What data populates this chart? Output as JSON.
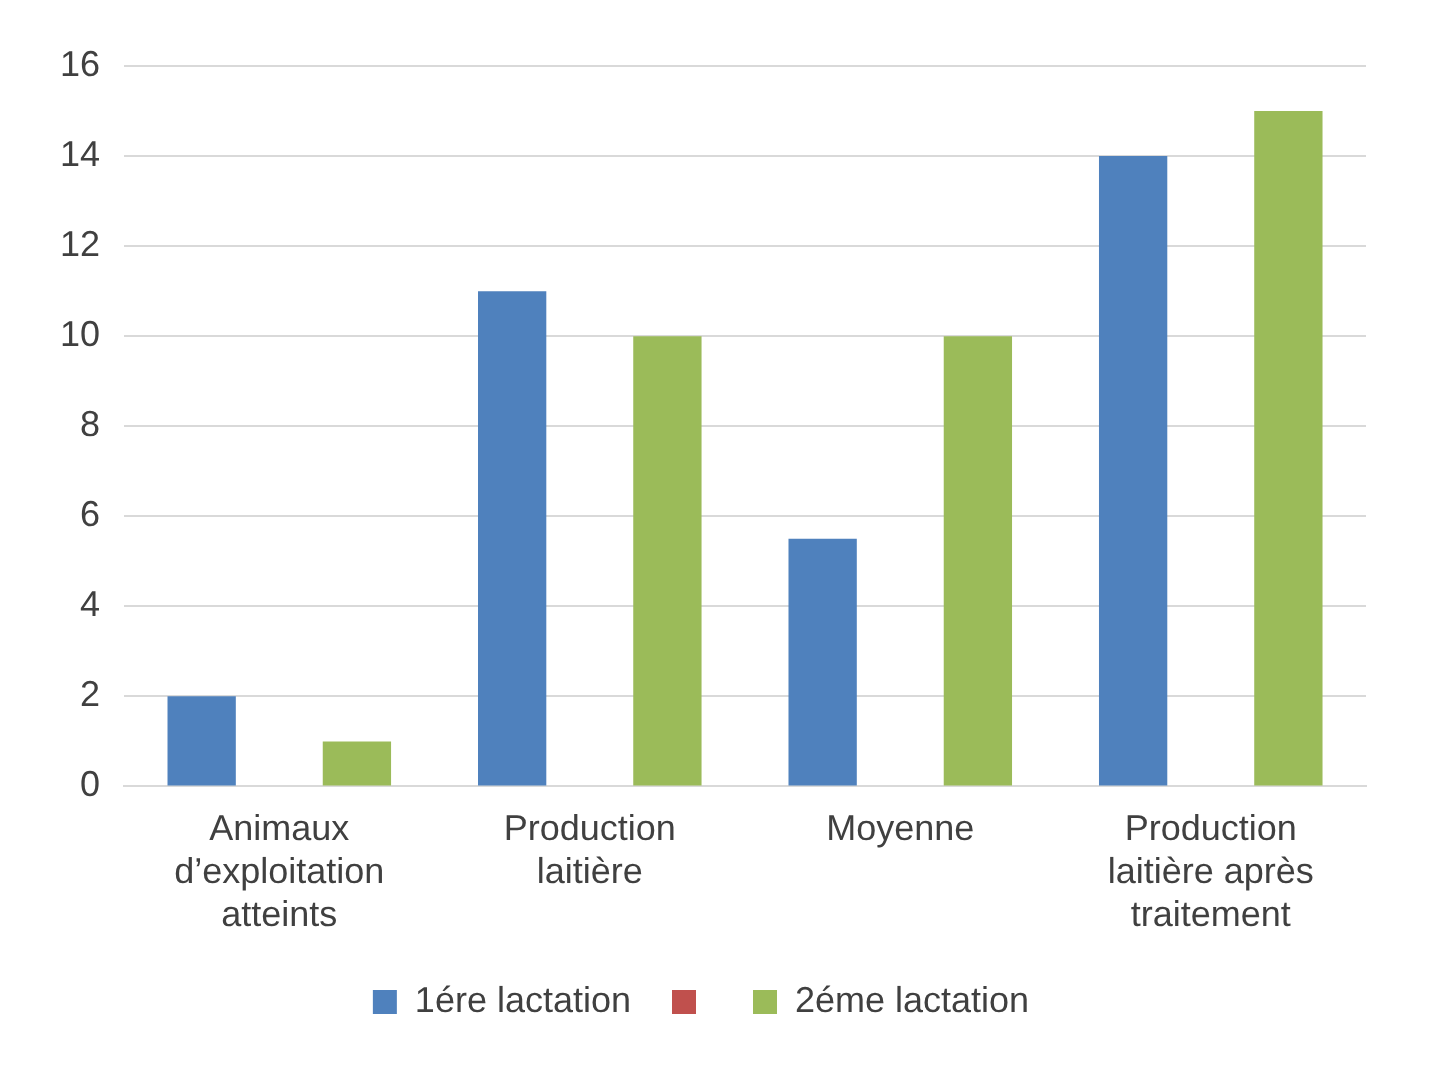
{
  "chart_data": {
    "type": "bar",
    "categories": [
      "Animaux d’exploitation atteints",
      "Production laitière",
      "Moyenne",
      "Production laitière après traitement"
    ],
    "series": [
      {
        "name": "1ére lactation",
        "color": "#4f81bd",
        "values": [
          2,
          11,
          5.5,
          14
        ]
      },
      {
        "color": "#c0504d",
        "values": [
          null,
          null,
          null,
          null
        ]
      },
      {
        "name": "2éme lactation",
        "color": "#9bbb59",
        "values": [
          1,
          10,
          10,
          15
        ]
      }
    ],
    "ylim": [
      0,
      16
    ],
    "yticks": [
      0,
      2,
      4,
      6,
      8,
      10,
      12,
      14,
      16
    ],
    "grid": "y",
    "legend": "bottom"
  }
}
